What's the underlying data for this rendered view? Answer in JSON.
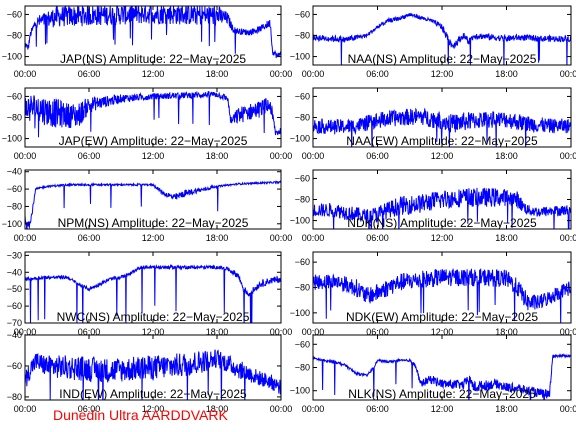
{
  "footer": "Dunedin Ultra AARDDVARK",
  "chart_data": [
    {
      "type": "line",
      "title": "JAP(NS) Amplitude: 22−May−2025",
      "ylim": [
        -108,
        -52
      ],
      "yticks": [
        "−100",
        "−80",
        "−60"
      ],
      "xticks": [
        "00:00",
        "06:00",
        "12:00",
        "18:00",
        "00:00"
      ],
      "color": "#0000ff",
      "series": [
        {
          "x": [
            0,
            0.3,
            0.5,
            1,
            3,
            6,
            9,
            12,
            15,
            18,
            19,
            19.5,
            20,
            21,
            22,
            23,
            23.2,
            23.7,
            24
          ],
          "y": [
            -88,
            -92,
            -79,
            -68,
            -62,
            -61,
            -60,
            -59,
            -60,
            -61,
            -64,
            -74,
            -76,
            -77,
            -74,
            -68,
            -95,
            -100,
            -95
          ],
          "spread": [
            3,
            3,
            3,
            6,
            10,
            10,
            10,
            10,
            10,
            10,
            6,
            3,
            3,
            3,
            3,
            4,
            3,
            3,
            3
          ]
        }
      ]
    },
    {
      "type": "line",
      "title": "JAP(EW) Amplitude: 22−May−2025",
      "ylim": [
        -108,
        -52
      ],
      "yticks": [
        "−100",
        "−80",
        "−60"
      ],
      "xticks": [
        "00:00",
        "06:00",
        "12:00",
        "18:00",
        "00:00"
      ],
      "color": "#0000ff",
      "series": [
        {
          "x": [
            0,
            1,
            2,
            3,
            4,
            5,
            6,
            7,
            9,
            12,
            15,
            18,
            19,
            19.3,
            20,
            21,
            22,
            23,
            23.5,
            24
          ],
          "y": [
            -72,
            -70,
            -74,
            -76,
            -78,
            -78,
            -68,
            -66,
            -62,
            -60,
            -59,
            -58,
            -62,
            -84,
            -78,
            -75,
            -72,
            -68,
            -95,
            -92
          ],
          "spread": [
            14,
            14,
            14,
            14,
            12,
            12,
            8,
            6,
            4,
            3,
            3,
            3,
            3,
            4,
            8,
            8,
            8,
            8,
            4,
            4
          ]
        }
      ]
    },
    {
      "type": "line",
      "title": "NPM(NS) Amplitude: 22−May−2025",
      "ylim": [
        -106,
        -38
      ],
      "yticks": [
        "−100",
        "−80",
        "−60",
        "−40"
      ],
      "xticks": [
        "00:00",
        "06:00",
        "12:00",
        "18:00",
        "00:00"
      ],
      "color": "#0000ff",
      "series": [
        {
          "x": [
            0,
            0.5,
            1,
            2,
            4,
            6,
            8,
            10,
            12,
            12.5,
            13,
            14,
            15,
            16,
            17,
            17.5,
            18,
            20,
            22,
            24
          ],
          "y": [
            -95,
            -100,
            -60,
            -57,
            -55,
            -55,
            -55,
            -55,
            -55,
            -60,
            -65,
            -70,
            -65,
            -62,
            -60,
            -58,
            -57,
            -54,
            -53,
            -52
          ],
          "spread": [
            5,
            5,
            1,
            1,
            1,
            1,
            1,
            1,
            1,
            2,
            3,
            4,
            4,
            3,
            2,
            2,
            1,
            1,
            1,
            1
          ]
        }
      ]
    },
    {
      "type": "line",
      "title": "NWC(NS) Amplitude: 22−May−2025",
      "ylim": [
        -70,
        -28
      ],
      "yticks": [
        "−70",
        "−60",
        "−50",
        "−40",
        "−30"
      ],
      "xticks": [
        "00:00",
        "06:00",
        "12:00",
        "18:00",
        "00:00"
      ],
      "color": "#0000ff",
      "series": [
        {
          "x": [
            0,
            2,
            4,
            5,
            6,
            7,
            8,
            9,
            10,
            11,
            12,
            14,
            16,
            18,
            19,
            20,
            20.5,
            21,
            22,
            23,
            24
          ],
          "y": [
            -44,
            -43,
            -43,
            -47,
            -50,
            -47,
            -44,
            -43,
            -40,
            -37,
            -37,
            -37,
            -37,
            -37,
            -38,
            -42,
            -50,
            -53,
            -47,
            -45,
            -44
          ],
          "spread": [
            1,
            1,
            1,
            1,
            1,
            1,
            1,
            1,
            1,
            1,
            1,
            1,
            1,
            1,
            1,
            2,
            2,
            2,
            2,
            2,
            2
          ]
        }
      ]
    },
    {
      "type": "line",
      "title": "IND(EW) Amplitude: 22−May−2025",
      "ylim": [
        -82,
        -40
      ],
      "yticks": [
        "−80",
        "−60",
        "−40"
      ],
      "xticks": [
        "00:00",
        "06:00",
        "12:00",
        "18:00",
        "00:00"
      ],
      "color": "#0000ff",
      "series": [
        {
          "x": [
            0,
            0.5,
            1,
            2,
            4,
            6,
            8,
            10,
            12,
            14,
            16,
            18,
            20,
            22,
            23,
            24
          ],
          "y": [
            -70,
            -62,
            -57,
            -60,
            -61,
            -62,
            -63,
            -62,
            -61,
            -60,
            -58,
            -55,
            -62,
            -68,
            -70,
            -74
          ],
          "spread": [
            6,
            6,
            6,
            7,
            8,
            8,
            8,
            8,
            8,
            8,
            8,
            6,
            6,
            5,
            5,
            5
          ]
        }
      ]
    },
    {
      "type": "line",
      "title": "NAA(NS) Amplitude: 22−May−2025",
      "ylim": [
        -108,
        -52
      ],
      "yticks": [
        "−100",
        "−80",
        "−60"
      ],
      "xticks": [
        "00:00",
        "06:00",
        "12:00",
        "18:00",
        "00:00"
      ],
      "color": "#0000ff",
      "series": [
        {
          "x": [
            0,
            2,
            3,
            5,
            6,
            7,
            8,
            9,
            10,
            11,
            12,
            12.5,
            13,
            14,
            14.5,
            15,
            16,
            17,
            18,
            19,
            20,
            21,
            22,
            24
          ],
          "y": [
            -82,
            -83,
            -84,
            -80,
            -72,
            -66,
            -64,
            -60,
            -63,
            -66,
            -72,
            -82,
            -90,
            -80,
            -86,
            -80,
            -81,
            -82,
            -83,
            -82,
            -82,
            -83,
            -83,
            -83
          ],
          "spread": [
            3,
            3,
            3,
            2,
            2,
            2,
            2,
            2,
            2,
            2,
            3,
            4,
            4,
            3,
            4,
            3,
            3,
            3,
            3,
            3,
            3,
            3,
            3,
            3
          ]
        }
      ]
    },
    {
      "type": "line",
      "title": "NAA(EW) Amplitude: 22−May−2025",
      "ylim": [
        -108,
        -52
      ],
      "yticks": [
        "−100",
        "−80",
        "−60"
      ],
      "xticks": [
        "00:00",
        "06:00",
        "12:00",
        "18:00",
        "00:00"
      ],
      "color": "#0000ff",
      "series": [
        {
          "x": [
            0,
            2,
            4,
            6,
            8,
            10,
            12,
            13,
            14,
            16,
            18,
            20,
            22,
            24
          ],
          "y": [
            -88,
            -89,
            -88,
            -83,
            -80,
            -79,
            -83,
            -86,
            -84,
            -82,
            -82,
            -86,
            -88,
            -88
          ],
          "spread": [
            7,
            7,
            7,
            8,
            8,
            8,
            9,
            9,
            9,
            8,
            8,
            8,
            7,
            7
          ]
        }
      ]
    },
    {
      "type": "line",
      "title": "NDK(NS) Amplitude: 22−May−2025",
      "ylim": [
        -108,
        -52
      ],
      "yticks": [
        "−100",
        "−80",
        "−60"
      ],
      "xticks": [
        "00:00",
        "06:00",
        "12:00",
        "18:00",
        "00:00"
      ],
      "color": "#0000ff",
      "series": [
        {
          "x": [
            0,
            2,
            4,
            5,
            6,
            7,
            8,
            10,
            12,
            14,
            16,
            17,
            18,
            19,
            19.5,
            20,
            21,
            22,
            24
          ],
          "y": [
            -90,
            -90,
            -94,
            -96,
            -94,
            -90,
            -86,
            -84,
            -80,
            -78,
            -78,
            -78,
            -78,
            -80,
            -86,
            -90,
            -92,
            -91,
            -90
          ],
          "spread": [
            6,
            7,
            7,
            7,
            8,
            8,
            9,
            9,
            9,
            9,
            9,
            9,
            8,
            8,
            6,
            5,
            5,
            5,
            5
          ]
        }
      ]
    },
    {
      "type": "line",
      "title": "NDK(EW) Amplitude: 22−May−2025",
      "ylim": [
        -108,
        -52
      ],
      "yticks": [
        "−100",
        "−80",
        "−60"
      ],
      "xticks": [
        "00:00",
        "06:00",
        "12:00",
        "18:00",
        "00:00"
      ],
      "color": "#0000ff",
      "series": [
        {
          "x": [
            0,
            2,
            4,
            5,
            6,
            7,
            8,
            10,
            12,
            14,
            16,
            18,
            19,
            20,
            21,
            22,
            23,
            24
          ],
          "y": [
            -76,
            -75,
            -80,
            -87,
            -84,
            -80,
            -76,
            -74,
            -72,
            -72,
            -72,
            -73,
            -80,
            -92,
            -92,
            -88,
            -83,
            -80
          ],
          "spread": [
            6,
            6,
            7,
            7,
            7,
            7,
            7,
            7,
            7,
            7,
            7,
            7,
            7,
            7,
            6,
            6,
            6,
            6
          ]
        }
      ]
    },
    {
      "type": "line",
      "title": "NLK(NS) Amplitude: 22−May−2025",
      "ylim": [
        -108,
        -52
      ],
      "yticks": [
        "−100",
        "−80",
        "−60"
      ],
      "xticks": [
        "00:00",
        "06:00",
        "12:00",
        "18:00",
        "00:00"
      ],
      "color": "#0000ff",
      "series": [
        {
          "x": [
            0,
            1,
            2,
            3,
            4,
            5,
            5.5,
            6,
            7,
            8,
            9,
            9.5,
            10,
            11,
            12,
            14,
            14.5,
            15,
            17,
            18,
            19,
            20,
            21,
            22,
            22.3,
            22.6,
            24
          ],
          "y": [
            -72,
            -74,
            -75,
            -78,
            -85,
            -87,
            -82,
            -74,
            -75,
            -74,
            -74,
            -78,
            -94,
            -90,
            -94,
            -95,
            -90,
            -97,
            -94,
            -97,
            -98,
            -100,
            -102,
            -103,
            -70,
            -70,
            -70
          ],
          "spread": [
            1,
            1,
            1,
            1,
            1,
            1,
            1,
            1,
            1,
            1,
            1,
            2,
            3,
            4,
            4,
            4,
            4,
            5,
            4,
            4,
            4,
            4,
            4,
            4,
            1,
            1,
            1
          ]
        }
      ]
    }
  ]
}
